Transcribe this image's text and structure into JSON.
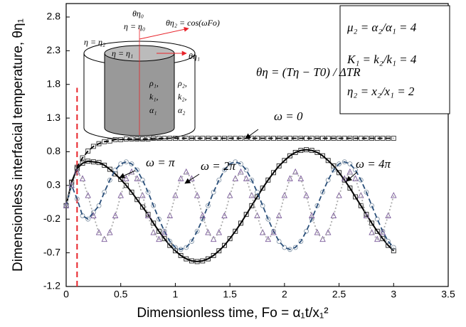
{
  "chart_data": {
    "type": "line",
    "x_label": "Dimensionless time, Fo = α₁t/x₁²",
    "y_label": "Dimensionless interfacial temperature, θη₁",
    "xlim": [
      0,
      3.5
    ],
    "xticks": [
      0,
      0.5,
      1,
      1.5,
      2,
      2.5,
      3,
      3.5
    ],
    "ylim": [
      -1.2,
      3.0
    ],
    "yticks": [
      -1.2,
      -0.7,
      -0.2,
      0.3,
      0.8,
      1.3,
      1.8,
      2.3,
      2.8
    ],
    "x": [
      0,
      0.05,
      0.1,
      0.15,
      0.2,
      0.25,
      0.3,
      0.35,
      0.4,
      0.45,
      0.5,
      0.55,
      0.6,
      0.65,
      0.7,
      0.75,
      0.8,
      0.85,
      0.9,
      0.95,
      1,
      1.05,
      1.1,
      1.15,
      1.2,
      1.25,
      1.3,
      1.35,
      1.4,
      1.45,
      1.5,
      1.55,
      1.6,
      1.65,
      1.7,
      1.75,
      1.8,
      1.85,
      1.9,
      1.95,
      2,
      2.05,
      2.1,
      2.15,
      2.2,
      2.25,
      2.3,
      2.35,
      2.4,
      2.45,
      2.5,
      2.55,
      2.6,
      2.65,
      2.7,
      2.75,
      2.8,
      2.85,
      2.9,
      2.95,
      3
    ],
    "series": [
      {
        "name": "ω = 0",
        "color": "#000",
        "marker_color": "#333",
        "marker": "square",
        "line_style": "dashed",
        "values": [
          0,
          0.34,
          0.57,
          0.71,
          0.81,
          0.88,
          0.92,
          0.95,
          0.96,
          0.98,
          0.98,
          0.99,
          0.99,
          0.99,
          0.99,
          0.99,
          1,
          1,
          1,
          1,
          1,
          1,
          1,
          1,
          1,
          1,
          1,
          1,
          1,
          1,
          1,
          1,
          1,
          1,
          1,
          1,
          1,
          1,
          1,
          1,
          1,
          1,
          1,
          1,
          1,
          1,
          1,
          1,
          1,
          1,
          1,
          1,
          1,
          1,
          1,
          1,
          1,
          1,
          1,
          1,
          1
        ]
      },
      {
        "name": "ω = π",
        "color": "#000",
        "marker_color": "#222",
        "marker": "square",
        "line_style": "solid",
        "values": [
          0,
          0.35,
          0.55,
          0.63,
          0.66,
          0.65,
          0.64,
          0.6,
          0.54,
          0.47,
          0.39,
          0.3,
          0.2,
          0.09,
          -0.02,
          -0.13,
          -0.26,
          -0.38,
          -0.49,
          -0.59,
          -0.67,
          -0.74,
          -0.79,
          -0.82,
          -0.83,
          -0.82,
          -0.79,
          -0.74,
          -0.67,
          -0.59,
          -0.49,
          -0.38,
          -0.26,
          -0.13,
          0,
          0.13,
          0.26,
          0.38,
          0.49,
          0.59,
          0.67,
          0.74,
          0.79,
          0.82,
          0.83,
          0.82,
          0.79,
          0.74,
          0.67,
          0.59,
          0.49,
          0.38,
          0.26,
          0.13,
          0,
          -0.13,
          -0.26,
          -0.38,
          -0.49,
          -0.59,
          -0.67
        ]
      },
      {
        "name": "ω = 2π",
        "color": "#2a4f7a",
        "marker_color": "#8899aa",
        "marker": "circle",
        "line_style": "dashed",
        "values": [
          0,
          0.3,
          0.1,
          -0.15,
          -0.2,
          -0.1,
          0,
          0.2,
          0.38,
          0.53,
          0.62,
          0.65,
          0.62,
          0.53,
          0.38,
          0.2,
          0,
          -0.2,
          -0.38,
          -0.53,
          -0.62,
          -0.65,
          -0.62,
          -0.53,
          -0.38,
          -0.2,
          0,
          0.2,
          0.38,
          0.53,
          0.62,
          0.65,
          0.62,
          0.53,
          0.38,
          0.2,
          0,
          -0.2,
          -0.38,
          -0.53,
          -0.62,
          -0.65,
          -0.62,
          -0.53,
          -0.38,
          -0.2,
          0,
          0.2,
          0.38,
          0.53,
          0.62,
          0.65,
          0.62,
          0.53,
          0.38,
          0.2,
          0,
          -0.2,
          -0.38,
          -0.53,
          -0.62
        ]
      },
      {
        "name": "ω = 4π",
        "color": "#aaaaaa",
        "marker_color": "#7a5a9a",
        "marker": "triangle",
        "line_style": "dotted",
        "values": [
          0,
          0.3,
          0.5,
          0.4,
          0.15,
          -0.15,
          -0.4,
          -0.5,
          -0.4,
          -0.15,
          0.15,
          0.4,
          0.5,
          0.4,
          0.15,
          -0.15,
          -0.4,
          -0.5,
          -0.4,
          -0.15,
          0.15,
          0.4,
          0.5,
          0.4,
          0.15,
          -0.15,
          -0.4,
          -0.5,
          -0.4,
          -0.15,
          0.15,
          0.4,
          0.5,
          0.4,
          0.15,
          -0.15,
          -0.4,
          -0.5,
          -0.4,
          -0.15,
          0.15,
          0.4,
          0.5,
          0.4,
          0.15,
          -0.15,
          -0.4,
          -0.5,
          -0.4,
          -0.15,
          0.15,
          0.4,
          0.5,
          0.4,
          0.15,
          -0.15,
          -0.4,
          -0.5,
          -0.4,
          -0.15,
          0.15
        ]
      }
    ],
    "reference_line": {
      "x": 0.1,
      "y_top": 1.75,
      "color": "#e8232a"
    },
    "formula": "θη = (Tη − T0) / ΔTR",
    "parameters": [
      "μ₂ = α₂/α₁ = 4",
      "K₁ = k₂/k₁ = 4",
      "η₂ = x₂/x₁ = 2"
    ],
    "diagram_labels": [
      "θη₀",
      "η = η₀",
      "θη₂ = cos(ωFo)",
      "η = η₂",
      "η = η₁",
      "θη₁",
      "ρ₁,",
      "k₁,",
      "α₁",
      "ρ₂,",
      "k₂,",
      "α₂"
    ]
  }
}
